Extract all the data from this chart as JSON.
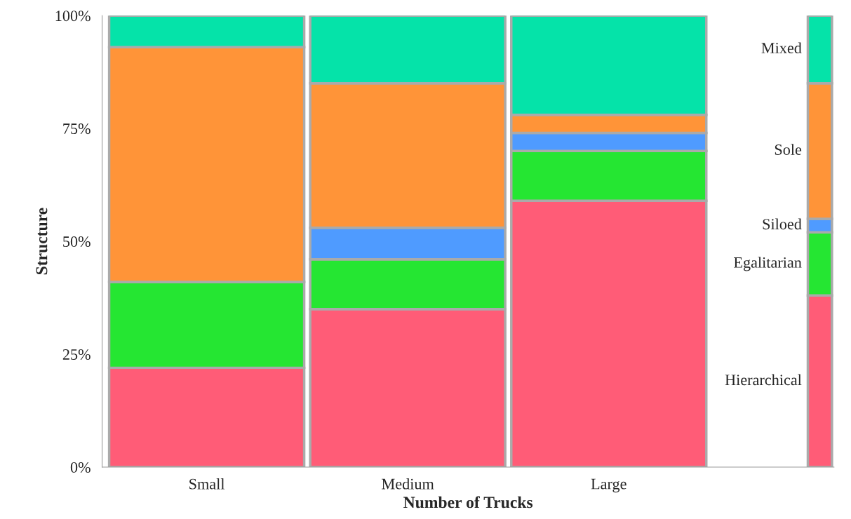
{
  "chart_data": {
    "type": "bar",
    "stacked": true,
    "xlabel": "Number of Trucks",
    "ylabel": "Structure",
    "categories": [
      "Small",
      "Medium",
      "Large",
      null
    ],
    "series": [
      {
        "name": "Hierarchical",
        "color": "#ff5c77",
        "values": [
          22,
          35,
          59,
          38
        ]
      },
      {
        "name": "Egalitarian",
        "color": "#25e632",
        "values": [
          19,
          11,
          11,
          14
        ]
      },
      {
        "name": "Siloed",
        "color": "#4f9bff",
        "values": [
          0,
          7,
          4,
          3
        ]
      },
      {
        "name": "Sole",
        "color": "#ff9438",
        "values": [
          52,
          32,
          4,
          30
        ]
      },
      {
        "name": "Mixed",
        "color": "#05e3a9",
        "values": [
          7,
          15,
          22,
          15
        ]
      }
    ],
    "ylim": [
      0,
      100
    ],
    "yticks": [
      {
        "value": 0,
        "label": "0%"
      },
      {
        "value": 25,
        "label": "25%"
      },
      {
        "value": 50,
        "label": "50%"
      },
      {
        "value": 75,
        "label": "75%"
      },
      {
        "value": 100,
        "label": "100%"
      }
    ],
    "grid": false,
    "legend": false
  }
}
